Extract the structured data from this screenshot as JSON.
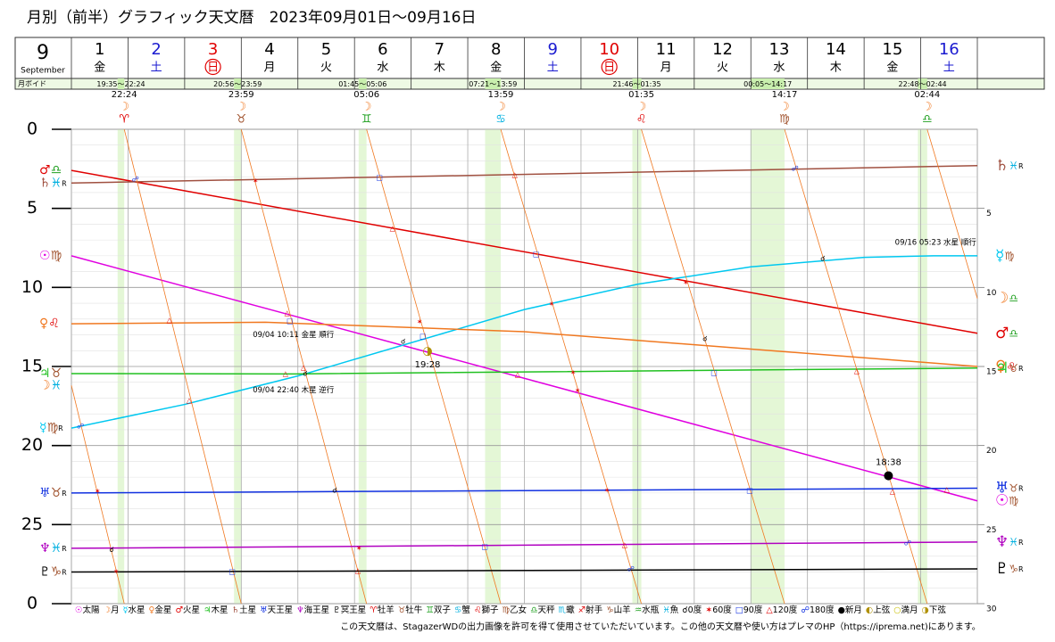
{
  "chart_data": {
    "type": "line",
    "title": "月別（前半）グラフィック天文暦　2023年09月01日～09月16日",
    "footer": "この天文暦は、StagazerWDの出力画像を許可を得て使用させていただいています。この他の天文暦や使い方はプレマのHP（https://iprema.net)にあります。",
    "header": {
      "month": "9",
      "month_name": "September",
      "void_label": "月ボイド",
      "moon_symbol": "☽",
      "days": [
        {
          "day": "1",
          "weekday": "金",
          "color": "#000000"
        },
        {
          "day": "2",
          "weekday": "土",
          "color": "#1a1ad0"
        },
        {
          "day": "3",
          "weekday": "日",
          "color": "#e00000",
          "circled": true
        },
        {
          "day": "4",
          "weekday": "月",
          "color": "#000000"
        },
        {
          "day": "5",
          "weekday": "火",
          "color": "#000000"
        },
        {
          "day": "6",
          "weekday": "水",
          "color": "#000000"
        },
        {
          "day": "7",
          "weekday": "木",
          "color": "#000000"
        },
        {
          "day": "8",
          "weekday": "金",
          "color": "#000000"
        },
        {
          "day": "9",
          "weekday": "土",
          "color": "#1a1ad0"
        },
        {
          "day": "10",
          "weekday": "日",
          "color": "#e00000",
          "circled": true
        },
        {
          "day": "11",
          "weekday": "月",
          "color": "#000000"
        },
        {
          "day": "12",
          "weekday": "火",
          "color": "#000000"
        },
        {
          "day": "13",
          "weekday": "水",
          "color": "#000000"
        },
        {
          "day": "14",
          "weekday": "木",
          "color": "#000000"
        },
        {
          "day": "15",
          "weekday": "金",
          "color": "#000000"
        },
        {
          "day": "16",
          "weekday": "土",
          "color": "#1a1ad0"
        }
      ],
      "voids": [
        {
          "label": "19:35～22:24",
          "start": 1.816,
          "end": 1.9333
        },
        {
          "label": "20:56～23:59",
          "start": 3.872,
          "end": 3.9993
        },
        {
          "label": "01:45～05:06",
          "start": 6.073,
          "end": 6.2125
        },
        {
          "label": "07:21～13:59",
          "start": 8.306,
          "end": 8.5826
        },
        {
          "label": "21:46～01:35",
          "start": 10.907,
          "end": 11.066
        },
        {
          "label": "00:05～14:17",
          "start": 13.003,
          "end": 13.5951
        },
        {
          "label": "22:48～02:44",
          "start": 15.95,
          "end": 16.1139
        }
      ],
      "moon_ingress": [
        {
          "time": "22:24",
          "sign": "♈",
          "x": 1.9333
        },
        {
          "time": "23:59",
          "sign": "♉",
          "x": 3.9993
        },
        {
          "time": "05:06",
          "sign": "♊",
          "x": 6.2125
        },
        {
          "time": "13:59",
          "sign": "♋",
          "x": 8.5826
        },
        {
          "time": "01:35",
          "sign": "♌",
          "x": 11.066
        },
        {
          "time": "14:17",
          "sign": "♍",
          "x": 13.5951
        },
        {
          "time": "02:44",
          "sign": "♎",
          "x": 16.1139
        }
      ]
    },
    "xlim": [
      1,
      17
    ],
    "xticks": [
      1,
      2,
      3,
      4,
      5,
      6,
      7,
      8,
      9,
      10,
      11,
      12,
      13,
      14,
      15,
      16,
      17
    ],
    "ylim": [
      0,
      30
    ],
    "y_reversed": true,
    "yticks": [
      0,
      5,
      10,
      15,
      20,
      25,
      {
        "value": 30,
        "label": "0"
      }
    ],
    "yticks_right": [
      5,
      10,
      15,
      20,
      25,
      30
    ],
    "yminorticks": [
      1,
      2,
      3,
      4,
      6,
      7,
      8,
      9,
      11,
      12,
      13,
      14,
      16,
      17,
      18,
      19,
      21,
      22,
      23,
      24,
      26,
      27,
      28,
      29
    ],
    "void_shade": "#e4f7d6",
    "series": [
      {
        "planet": "♂",
        "sign_start": "♎",
        "sign_end": "♎",
        "color": "#e00000",
        "line_width": 1.5,
        "x": [
          1,
          17
        ],
        "values": [
          2.6,
          12.9
        ]
      },
      {
        "planet": "♄",
        "sign_start": "♓",
        "sign_end": "♓",
        "retro_start": "R",
        "retro_end": "R",
        "color": "#a05040",
        "line_width": 1.5,
        "x": [
          1,
          17
        ],
        "values": [
          3.4,
          2.3
        ]
      },
      {
        "planet": "☉",
        "sign_start": "♍",
        "sign_end": "♍",
        "color": "#e000e0",
        "line_width": 1.5,
        "x": [
          1,
          17
        ],
        "values": [
          8.0,
          23.5
        ]
      },
      {
        "planet": "☿",
        "sign_start": "♍",
        "sign_end": "♍",
        "retro_start": "R",
        "color": "#00c8f0",
        "line_width": 1.5,
        "x": [
          1,
          3,
          5,
          7,
          9,
          11,
          13,
          15,
          16.224,
          17
        ],
        "values": [
          18.9,
          17.4,
          15.6,
          13.5,
          11.4,
          9.8,
          8.7,
          8.1,
          8.0,
          8.0
        ]
      },
      {
        "planet": "♀",
        "sign_start": "♌",
        "sign_end": "♌",
        "color": "#f07820",
        "line_width": 1.5,
        "x": [
          1,
          4.424,
          9,
          13,
          17
        ],
        "values": [
          12.3,
          12.2,
          12.8,
          13.9,
          15.0
        ]
      },
      {
        "planet": "♃",
        "sign_start": "♉",
        "sign_end": "♉",
        "retro_end": "R",
        "color": "#20c020",
        "line_width": 1.5,
        "x": [
          1,
          4.944,
          17
        ],
        "values": [
          15.45,
          15.47,
          15.1
        ]
      },
      {
        "planet": "☽",
        "sign_start": "♓",
        "sign_end": "♎",
        "color": "#f07820",
        "line_width": 0.8,
        "x": [
          1,
          1.9333,
          null,
          1.9333,
          3.9993,
          null,
          3.9993,
          6.2125,
          null,
          6.2125,
          8.5826,
          null,
          8.5826,
          11.066,
          null,
          11.066,
          13.5951,
          null,
          13.5951,
          16.1139,
          null,
          16.1139,
          17
        ],
        "values": [
          16.2,
          30,
          null,
          0,
          30,
          null,
          0,
          30,
          null,
          0,
          30,
          null,
          0,
          30,
          null,
          0,
          30,
          null,
          0,
          30,
          null,
          0,
          10.7
        ]
      },
      {
        "planet": "♅",
        "sign_start": "♉",
        "sign_end": "♉",
        "retro_start": "R",
        "retro_end": "R",
        "color": "#1030e0",
        "line_width": 1.5,
        "x": [
          1,
          17
        ],
        "values": [
          23.0,
          22.7
        ]
      },
      {
        "planet": "♆",
        "sign_start": "♓",
        "sign_end": "♓",
        "retro_start": "R",
        "retro_end": "R",
        "color": "#b000c0",
        "line_width": 1.5,
        "x": [
          1,
          17
        ],
        "values": [
          26.5,
          26.1
        ]
      },
      {
        "planet": "♇",
        "sign_start": "♑",
        "sign_end": "♑",
        "retro_start": "R",
        "retro_end": "R",
        "color": "#000000",
        "line_width": 1.5,
        "x": [
          1,
          17
        ],
        "values": [
          28.0,
          27.8
        ]
      }
    ],
    "aspects": [
      {
        "symbol": "☍",
        "x": 2.13,
        "y": 3.16
      },
      {
        "symbol": "✶",
        "x": 4.25,
        "y": 3.27
      },
      {
        "symbol": "□",
        "x": 6.44,
        "y": 3.05
      },
      {
        "symbol": "△",
        "x": 8.83,
        "y": 2.88
      },
      {
        "symbol": "☍",
        "x": 13.78,
        "y": 2.48
      },
      {
        "symbol": "△",
        "x": 6.67,
        "y": 6.26
      },
      {
        "symbol": "□",
        "x": 9.21,
        "y": 7.9
      },
      {
        "symbol": "✶",
        "x": 11.85,
        "y": 9.7
      },
      {
        "symbol": "☌",
        "x": 14.27,
        "y": 8.18
      },
      {
        "symbol": "✶",
        "x": 9.48,
        "y": 11.05
      },
      {
        "symbol": "✶",
        "x": 7.15,
        "y": 12.18
      },
      {
        "symbol": "□",
        "x": 7.21,
        "y": 13.08
      },
      {
        "symbol": "☌",
        "x": 6.86,
        "y": 13.42
      },
      {
        "symbol": "△",
        "x": 2.73,
        "y": 12.07
      },
      {
        "symbol": "△",
        "x": 4.81,
        "y": 11.62
      },
      {
        "symbol": "□",
        "x": 4.86,
        "y": 12.13
      },
      {
        "symbol": "☌",
        "x": 12.19,
        "y": 13.25
      },
      {
        "symbol": "△",
        "x": 4.78,
        "y": 15.45
      },
      {
        "symbol": "△",
        "x": 5.1,
        "y": 15.06
      },
      {
        "symbol": "☌",
        "x": 5.13,
        "y": 15.45
      },
      {
        "symbol": "△",
        "x": 8.88,
        "y": 15.51
      },
      {
        "symbol": "✶",
        "x": 9.86,
        "y": 15.4
      },
      {
        "symbol": "□",
        "x": 12.35,
        "y": 15.4
      },
      {
        "symbol": "△",
        "x": 14.87,
        "y": 15.28
      },
      {
        "symbol": "△",
        "x": 3.08,
        "y": 17.15
      },
      {
        "symbol": "✶",
        "x": 9.94,
        "y": 16.53
      },
      {
        "symbol": "☍",
        "x": 1.16,
        "y": 18.78
      },
      {
        "symbol": "✶",
        "x": 1.46,
        "y": 22.9
      },
      {
        "symbol": "☌",
        "x": 5.65,
        "y": 22.84
      },
      {
        "symbol": "✶",
        "x": 10.46,
        "y": 22.84
      },
      {
        "symbol": "□",
        "x": 12.98,
        "y": 22.84
      },
      {
        "symbol": "△",
        "x": 15.5,
        "y": 22.9
      },
      {
        "symbol": "△",
        "x": 16.46,
        "y": 22.79
      },
      {
        "symbol": "☌",
        "x": 1.71,
        "y": 26.6
      },
      {
        "symbol": "✶",
        "x": 6.08,
        "y": 26.5
      },
      {
        "symbol": "□",
        "x": 8.3,
        "y": 26.4
      },
      {
        "symbol": "△",
        "x": 10.77,
        "y": 26.28
      },
      {
        "symbol": "☍",
        "x": 15.77,
        "y": 26.17
      },
      {
        "symbol": "✶",
        "x": 1.79,
        "y": 27.97
      },
      {
        "symbol": "□",
        "x": 3.84,
        "y": 27.97
      },
      {
        "symbol": "△",
        "x": 6.06,
        "y": 27.92
      },
      {
        "symbol": "☍",
        "x": 10.88,
        "y": 27.81
      }
    ],
    "phases": [
      {
        "symbol": "◑",
        "time": "19:28",
        "x": 7.29,
        "y": 14.04
      },
      {
        "symbol": "●",
        "time": "18:38",
        "x": 15.43,
        "y": 21.9
      }
    ],
    "annotations": [
      {
        "text": "09/04 10:11 金星 順行",
        "x": 4.424,
        "y": 12.2
      },
      {
        "text": "09/04 22:40 木星 逆行",
        "x": 4.944,
        "y": 15.47
      },
      {
        "text": "09/16 05:23 水星 順行",
        "x": 16.224,
        "y": 8.0
      }
    ],
    "legend": [
      {
        "symbol": "☉",
        "label": "太陽",
        "color": "#e000e0"
      },
      {
        "symbol": "☽",
        "label": "月",
        "color": "#f07820"
      },
      {
        "symbol": "☿",
        "label": "水星",
        "color": "#00c8f0"
      },
      {
        "symbol": "♀",
        "label": "金星",
        "color": "#f07820"
      },
      {
        "symbol": "♂",
        "label": "火星",
        "color": "#e00000"
      },
      {
        "symbol": "♃",
        "label": "木星",
        "color": "#20c020"
      },
      {
        "symbol": "♄",
        "label": "土星",
        "color": "#a05040"
      },
      {
        "symbol": "♅",
        "label": "天王星",
        "color": "#1030e0"
      },
      {
        "symbol": "♆",
        "label": "海王星",
        "color": "#b000c0"
      },
      {
        "symbol": "♇",
        "label": "冥王星",
        "color": "#000000"
      },
      {
        "symbol": "♈",
        "label": "牡羊",
        "color": "#e00000"
      },
      {
        "symbol": "♉",
        "label": "牡牛",
        "color": "#a0522d"
      },
      {
        "symbol": "♊",
        "label": "双子",
        "color": "#20a020"
      },
      {
        "symbol": "♋",
        "label": "蟹",
        "color": "#00b0e0"
      },
      {
        "symbol": "♌",
        "label": "獅子",
        "color": "#e00000"
      },
      {
        "symbol": "♍",
        "label": "乙女",
        "color": "#a0522d"
      },
      {
        "symbol": "♎",
        "label": "天秤",
        "color": "#20a020"
      },
      {
        "symbol": "♏",
        "label": "蠍",
        "color": "#00b0e0"
      },
      {
        "symbol": "♐",
        "label": "射手",
        "color": "#e00000"
      },
      {
        "symbol": "♑",
        "label": "山羊",
        "color": "#a0522d"
      },
      {
        "symbol": "♒",
        "label": "水瓶",
        "color": "#20a020"
      },
      {
        "symbol": "♓",
        "label": "魚",
        "color": "#00b0e0"
      },
      {
        "symbol": "☌",
        "label": "0度",
        "color": "#000000"
      },
      {
        "symbol": "✶",
        "label": "60度",
        "color": "#e00000"
      },
      {
        "symbol": "□",
        "label": "90度",
        "color": "#1030e0"
      },
      {
        "symbol": "△",
        "label": "120度",
        "color": "#e00000"
      },
      {
        "symbol": "☍",
        "label": "180度",
        "color": "#1030e0"
      },
      {
        "symbol": "●",
        "label": "新月",
        "color": "#000000"
      },
      {
        "symbol": "◐",
        "label": "上弦",
        "color": "#b09000"
      },
      {
        "symbol": "○",
        "label": "満月",
        "color": "#c8c000"
      },
      {
        "symbol": "◑",
        "label": "下弦",
        "color": "#b09000"
      }
    ]
  }
}
